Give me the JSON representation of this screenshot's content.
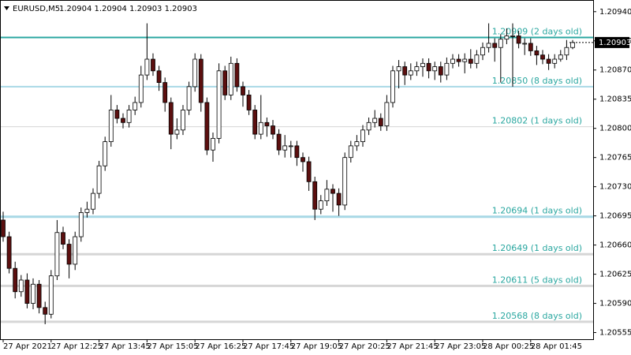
{
  "chart_data": {
    "type": "candlestick",
    "title": "EURUSD,M5",
    "ohlc_text": "1.20904 1.20904 1.20903 1.20903",
    "ylim": [
      1.20547,
      1.20954
    ],
    "yticks": [
      {
        "value": 1.2094,
        "label": "1.20940"
      },
      {
        "value": 1.20905,
        "label": "1.20905"
      },
      {
        "value": 1.2087,
        "label": "1.20870"
      },
      {
        "value": 1.20835,
        "label": "1.20835"
      },
      {
        "value": 1.208,
        "label": "1.20800"
      },
      {
        "value": 1.20765,
        "label": "1.20765"
      },
      {
        "value": 1.2073,
        "label": "1.20730"
      },
      {
        "value": 1.20695,
        "label": "1.20695"
      },
      {
        "value": 1.2066,
        "label": "1.20660"
      },
      {
        "value": 1.20625,
        "label": "1.20625"
      },
      {
        "value": 1.2059,
        "label": "1.20590"
      },
      {
        "value": 1.20555,
        "label": "1.20555"
      }
    ],
    "current_price": {
      "value": 1.20903,
      "label": "1.20903"
    },
    "up_color": "#ffffff",
    "down_color": "#5c0f0f",
    "levels": [
      {
        "value": 1.20909,
        "label": "1.20909  (2 days old)",
        "color": "#2aa7a0",
        "width": 2
      },
      {
        "value": 1.2085,
        "label": "1.20850  (8 days old)",
        "color": "#a8d8e6",
        "width": 2
      },
      {
        "value": 1.20802,
        "label": "1.20802  (1 days old)",
        "color": "#d6d6d6",
        "width": 1
      },
      {
        "value": 1.20694,
        "label": "1.20694  (1 days old)",
        "color": "#a8d8e6",
        "width": 3
      },
      {
        "value": 1.20649,
        "label": "1.20649  (1 days old)",
        "color": "#d6d6d6",
        "width": 3
      },
      {
        "value": 1.20611,
        "label": "1.20611  (5 days old)",
        "color": "#d6d6d6",
        "width": 3
      },
      {
        "value": 1.20568,
        "label": "1.20568  (8 days old)",
        "color": "#d6d6d6",
        "width": 3
      }
    ],
    "level_text_color": "#2aa7a0",
    "categories": [
      "27 Apr 2021",
      null,
      null,
      null,
      null,
      null,
      null,
      null,
      "27 Apr 12:25",
      null,
      null,
      null,
      null,
      null,
      null,
      null,
      "27 Apr 13:45",
      null,
      null,
      null,
      null,
      null,
      null,
      null,
      "27 Apr 15:05",
      null,
      null,
      null,
      null,
      null,
      null,
      null,
      "27 Apr 16:25",
      null,
      null,
      null,
      null,
      null,
      null,
      null,
      "27 Apr 17:45",
      null,
      null,
      null,
      null,
      null,
      null,
      null,
      "27 Apr 19:05",
      null,
      null,
      null,
      null,
      null,
      null,
      null,
      "27 Apr 20:25",
      null,
      null,
      null,
      null,
      null,
      null,
      null,
      "27 Apr 21:45",
      null,
      null,
      null,
      null,
      null,
      null,
      null,
      "27 Apr 23:05",
      null,
      null,
      null,
      null,
      null,
      null,
      null,
      "28 Apr 00:25",
      null,
      null,
      null,
      null,
      null,
      null,
      null,
      "28 Apr 01:45",
      null,
      null,
      null,
      null,
      null,
      null,
      null
    ],
    "candles": [
      [
        1.2069,
        1.207,
        1.20664,
        1.2067
      ],
      [
        1.2067,
        1.20676,
        1.20626,
        1.20632
      ],
      [
        1.20632,
        1.2064,
        1.20596,
        1.20604
      ],
      [
        1.20604,
        1.20624,
        1.20598,
        1.20618
      ],
      [
        1.20618,
        1.20626,
        1.20584,
        1.2059
      ],
      [
        1.2059,
        1.2062,
        1.20583,
        1.20613
      ],
      [
        1.20613,
        1.20618,
        1.20578,
        1.20585
      ],
      [
        1.20585,
        1.20592,
        1.20565,
        1.20577
      ],
      [
        1.20577,
        1.2063,
        1.20572,
        1.20623
      ],
      [
        1.20623,
        1.2069,
        1.20618,
        1.20675
      ],
      [
        1.20675,
        1.20682,
        1.20655,
        1.20661
      ],
      [
        1.20661,
        1.20667,
        1.2062,
        1.20637
      ],
      [
        1.20637,
        1.20676,
        1.2063,
        1.2067
      ],
      [
        1.2067,
        1.20705,
        1.20664,
        1.20699
      ],
      [
        1.20699,
        1.20712,
        1.20693,
        1.20703
      ],
      [
        1.20703,
        1.20728,
        1.20697,
        1.20722
      ],
      [
        1.20722,
        1.20761,
        1.20716,
        1.20755
      ],
      [
        1.20755,
        1.2079,
        1.20749,
        1.20784
      ],
      [
        1.20784,
        1.2084,
        1.20778,
        1.20822
      ],
      [
        1.20822,
        1.20828,
        1.20806,
        1.20812
      ],
      [
        1.20812,
        1.20818,
        1.208,
        1.20807
      ],
      [
        1.20807,
        1.20828,
        1.20801,
        1.20822
      ],
      [
        1.20822,
        1.20838,
        1.20816,
        1.20831
      ],
      [
        1.20831,
        1.20875,
        1.20825,
        1.20864
      ],
      [
        1.20864,
        1.20926,
        1.20858,
        1.20883
      ],
      [
        1.20883,
        1.2089,
        1.20863,
        1.20869
      ],
      [
        1.20869,
        1.20875,
        1.20845,
        1.20855
      ],
      [
        1.20855,
        1.20861,
        1.2082,
        1.20831
      ],
      [
        1.20831,
        1.20837,
        1.20775,
        1.20793
      ],
      [
        1.20793,
        1.20812,
        1.20787,
        1.20798
      ],
      [
        1.20798,
        1.20828,
        1.20792,
        1.20822
      ],
      [
        1.20822,
        1.20856,
        1.20816,
        1.2085
      ],
      [
        1.2085,
        1.2089,
        1.20844,
        1.20883
      ],
      [
        1.20883,
        1.20889,
        1.2082,
        1.20831
      ],
      [
        1.20831,
        1.20837,
        1.20768,
        1.20774
      ],
      [
        1.20774,
        1.20795,
        1.2076,
        1.20788
      ],
      [
        1.20788,
        1.20878,
        1.20782,
        1.20869
      ],
      [
        1.20869,
        1.20875,
        1.20834,
        1.2084
      ],
      [
        1.2084,
        1.20886,
        1.20834,
        1.20878
      ],
      [
        1.20878,
        1.20884,
        1.20844,
        1.2085
      ],
      [
        1.2085,
        1.20856,
        1.20826,
        1.2084
      ],
      [
        1.2084,
        1.20846,
        1.20816,
        1.20822
      ],
      [
        1.20822,
        1.20828,
        1.20787,
        1.20793
      ],
      [
        1.20793,
        1.2084,
        1.20787,
        1.20807
      ],
      [
        1.20807,
        1.20813,
        1.2079,
        1.20803
      ],
      [
        1.20803,
        1.2081,
        1.20787,
        1.20793
      ],
      [
        1.20793,
        1.20799,
        1.20768,
        1.20774
      ],
      [
        1.20774,
        1.20792,
        1.20765,
        1.20779
      ],
      [
        1.20779,
        1.20785,
        1.20765,
        1.20779
      ],
      [
        1.20779,
        1.20785,
        1.20755,
        1.20765
      ],
      [
        1.20765,
        1.20771,
        1.20748,
        1.2076
      ],
      [
        1.2076,
        1.20766,
        1.20725,
        1.20736
      ],
      [
        1.20736,
        1.20742,
        1.2069,
        1.20703
      ],
      [
        1.20703,
        1.2072,
        1.20697,
        1.20713
      ],
      [
        1.20713,
        1.20738,
        1.20707,
        1.20727
      ],
      [
        1.20727,
        1.20733,
        1.207,
        1.20722
      ],
      [
        1.20722,
        1.20728,
        1.20695,
        1.20708
      ],
      [
        1.20708,
        1.20771,
        1.20702,
        1.20765
      ],
      [
        1.20765,
        1.20785,
        1.20759,
        1.20779
      ],
      [
        1.20779,
        1.20792,
        1.20773,
        1.20784
      ],
      [
        1.20784,
        1.20804,
        1.20778,
        1.20798
      ],
      [
        1.20798,
        1.20813,
        1.20792,
        1.20807
      ],
      [
        1.20807,
        1.20822,
        1.20801,
        1.20812
      ],
      [
        1.20812,
        1.20818,
        1.20797,
        1.20803
      ],
      [
        1.20803,
        1.2084,
        1.20797,
        1.20831
      ],
      [
        1.20831,
        1.20875,
        1.20825,
        1.20869
      ],
      [
        1.20869,
        1.20882,
        1.20848,
        1.20874
      ],
      [
        1.20874,
        1.2088,
        1.20852,
        1.20864
      ],
      [
        1.20864,
        1.20878,
        1.20858,
        1.20869
      ],
      [
        1.20869,
        1.2088,
        1.20863,
        1.20874
      ],
      [
        1.20874,
        1.20884,
        1.20862,
        1.20878
      ],
      [
        1.20878,
        1.20884,
        1.2086,
        1.20869
      ],
      [
        1.20869,
        1.2088,
        1.20858,
        1.20874
      ],
      [
        1.20874,
        1.2088,
        1.20855,
        1.20864
      ],
      [
        1.20864,
        1.20885,
        1.20858,
        1.20878
      ],
      [
        1.20878,
        1.20889,
        1.20872,
        1.20883
      ],
      [
        1.20883,
        1.20889,
        1.20874,
        1.2088
      ],
      [
        1.2088,
        1.2089,
        1.20866,
        1.20883
      ],
      [
        1.20883,
        1.20895,
        1.20872,
        1.20878
      ],
      [
        1.20878,
        1.20894,
        1.20872,
        1.20888
      ],
      [
        1.20888,
        1.20903,
        1.20882,
        1.20897
      ],
      [
        1.20897,
        1.20926,
        1.20891,
        1.20902
      ],
      [
        1.20902,
        1.20908,
        1.2088,
        1.20897
      ],
      [
        1.20897,
        1.20913,
        1.20855,
        1.20907
      ],
      [
        1.20907,
        1.2092,
        1.20901,
        1.20911
      ],
      [
        1.20911,
        1.20926,
        1.2085,
        1.20911
      ],
      [
        1.20911,
        1.20917,
        1.20896,
        1.20902
      ],
      [
        1.20902,
        1.20908,
        1.20888,
        1.20902
      ],
      [
        1.20902,
        1.20908,
        1.20887,
        1.20893
      ],
      [
        1.20893,
        1.20899,
        1.20876,
        1.20888
      ],
      [
        1.20888,
        1.20894,
        1.20877,
        1.20883
      ],
      [
        1.20883,
        1.20889,
        1.2087,
        1.20878
      ],
      [
        1.20878,
        1.20889,
        1.20872,
        1.20883
      ],
      [
        1.20883,
        1.20894,
        1.2088,
        1.20888
      ],
      [
        1.20888,
        1.20906,
        1.20882,
        1.20897
      ],
      [
        1.20897,
        1.20906,
        1.20895,
        1.20903
      ]
    ]
  }
}
